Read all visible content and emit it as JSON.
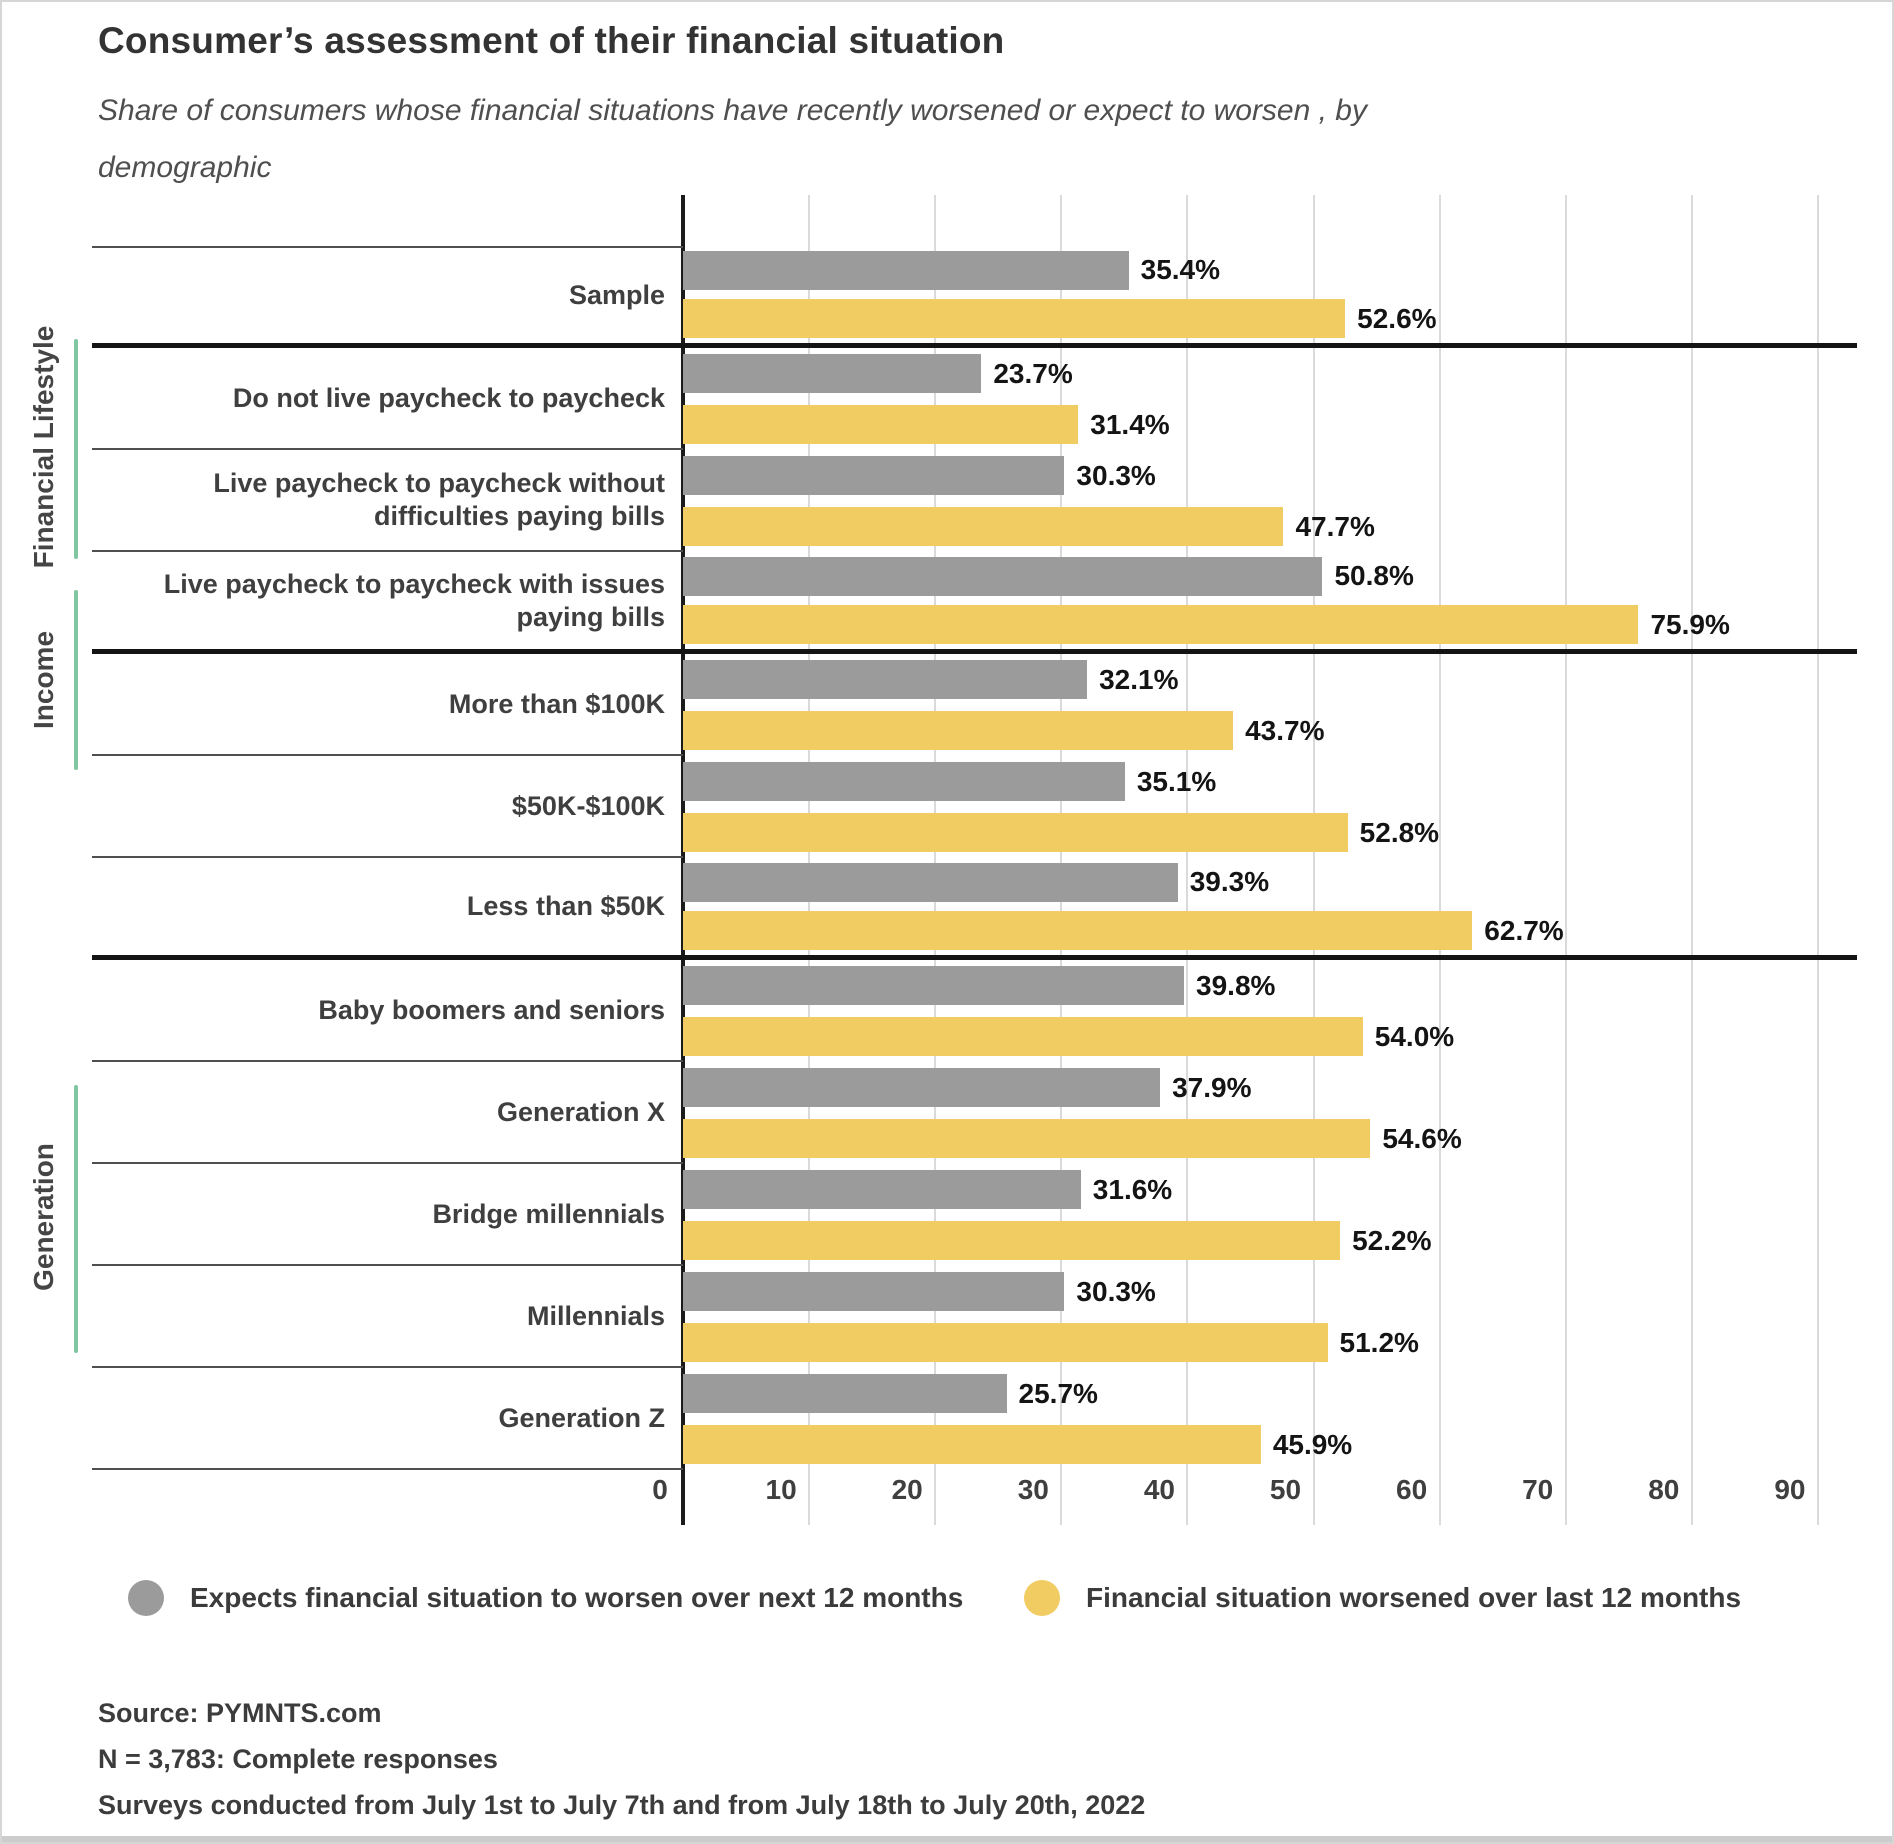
{
  "title": "Consumer’s assessment of their financial situation",
  "subtitle": "Share of consumers whose financial situations have recently worsened or expect to worsen , by demographic",
  "legend": [
    {
      "label": "Expects financial situation to worsen over next 12 months",
      "color": "#9b9b9b"
    },
    {
      "label": "Financial situation worsened over last 12 months",
      "color": "#f1cc62"
    }
  ],
  "footer": {
    "source": "Source: PYMNTS.com",
    "sample_size": "N = 3,783: Complete responses",
    "surveys": "Surveys conducted from July 1st to July 7th and from July 18th to July 20th, 2022"
  },
  "chart_data": {
    "type": "bar",
    "orientation": "horizontal",
    "value_unit": "%",
    "grid": true,
    "legend_position": "bottom",
    "x_range": [
      0,
      90
    ],
    "x_ticks": [
      0,
      10,
      20,
      30,
      40,
      50,
      60,
      70,
      80,
      90
    ],
    "series": [
      {
        "name": "Expects financial situation to worsen over next 12 months",
        "color": "#9b9b9b"
      },
      {
        "name": "Financial situation worsened over last 12 months",
        "color": "#f1cc62"
      }
    ],
    "groups": [
      {
        "group": "",
        "rows": [
          {
            "label": "Sample",
            "values": [
              35.4,
              52.6
            ]
          }
        ]
      },
      {
        "group": "Financial Lifestyle",
        "rows": [
          {
            "label": "Do not live paycheck to paycheck",
            "values": [
              23.7,
              31.4
            ]
          },
          {
            "label": "Live paycheck to paycheck without difficulties paying bills",
            "values": [
              30.3,
              47.7
            ]
          },
          {
            "label": "Live paycheck to paycheck with issues paying bills",
            "values": [
              50.8,
              75.9
            ]
          }
        ]
      },
      {
        "group": "Income",
        "rows": [
          {
            "label": "More than $100K",
            "values": [
              32.1,
              43.7
            ]
          },
          {
            "label": "$50K-$100K",
            "values": [
              35.1,
              52.8
            ]
          },
          {
            "label": "Less than $50K",
            "values": [
              39.3,
              62.7
            ]
          }
        ]
      },
      {
        "group": "Generation",
        "rows": [
          {
            "label": "Baby boomers and seniors",
            "values": [
              39.8,
              54.0
            ]
          },
          {
            "label": "Generation X",
            "values": [
              37.9,
              54.6
            ]
          },
          {
            "label": "Bridge millennials",
            "values": [
              31.6,
              52.2
            ]
          },
          {
            "label": "Millennials",
            "values": [
              30.3,
              51.2
            ]
          },
          {
            "label": "Generation Z",
            "values": [
              25.7,
              45.9
            ]
          }
        ]
      }
    ]
  }
}
